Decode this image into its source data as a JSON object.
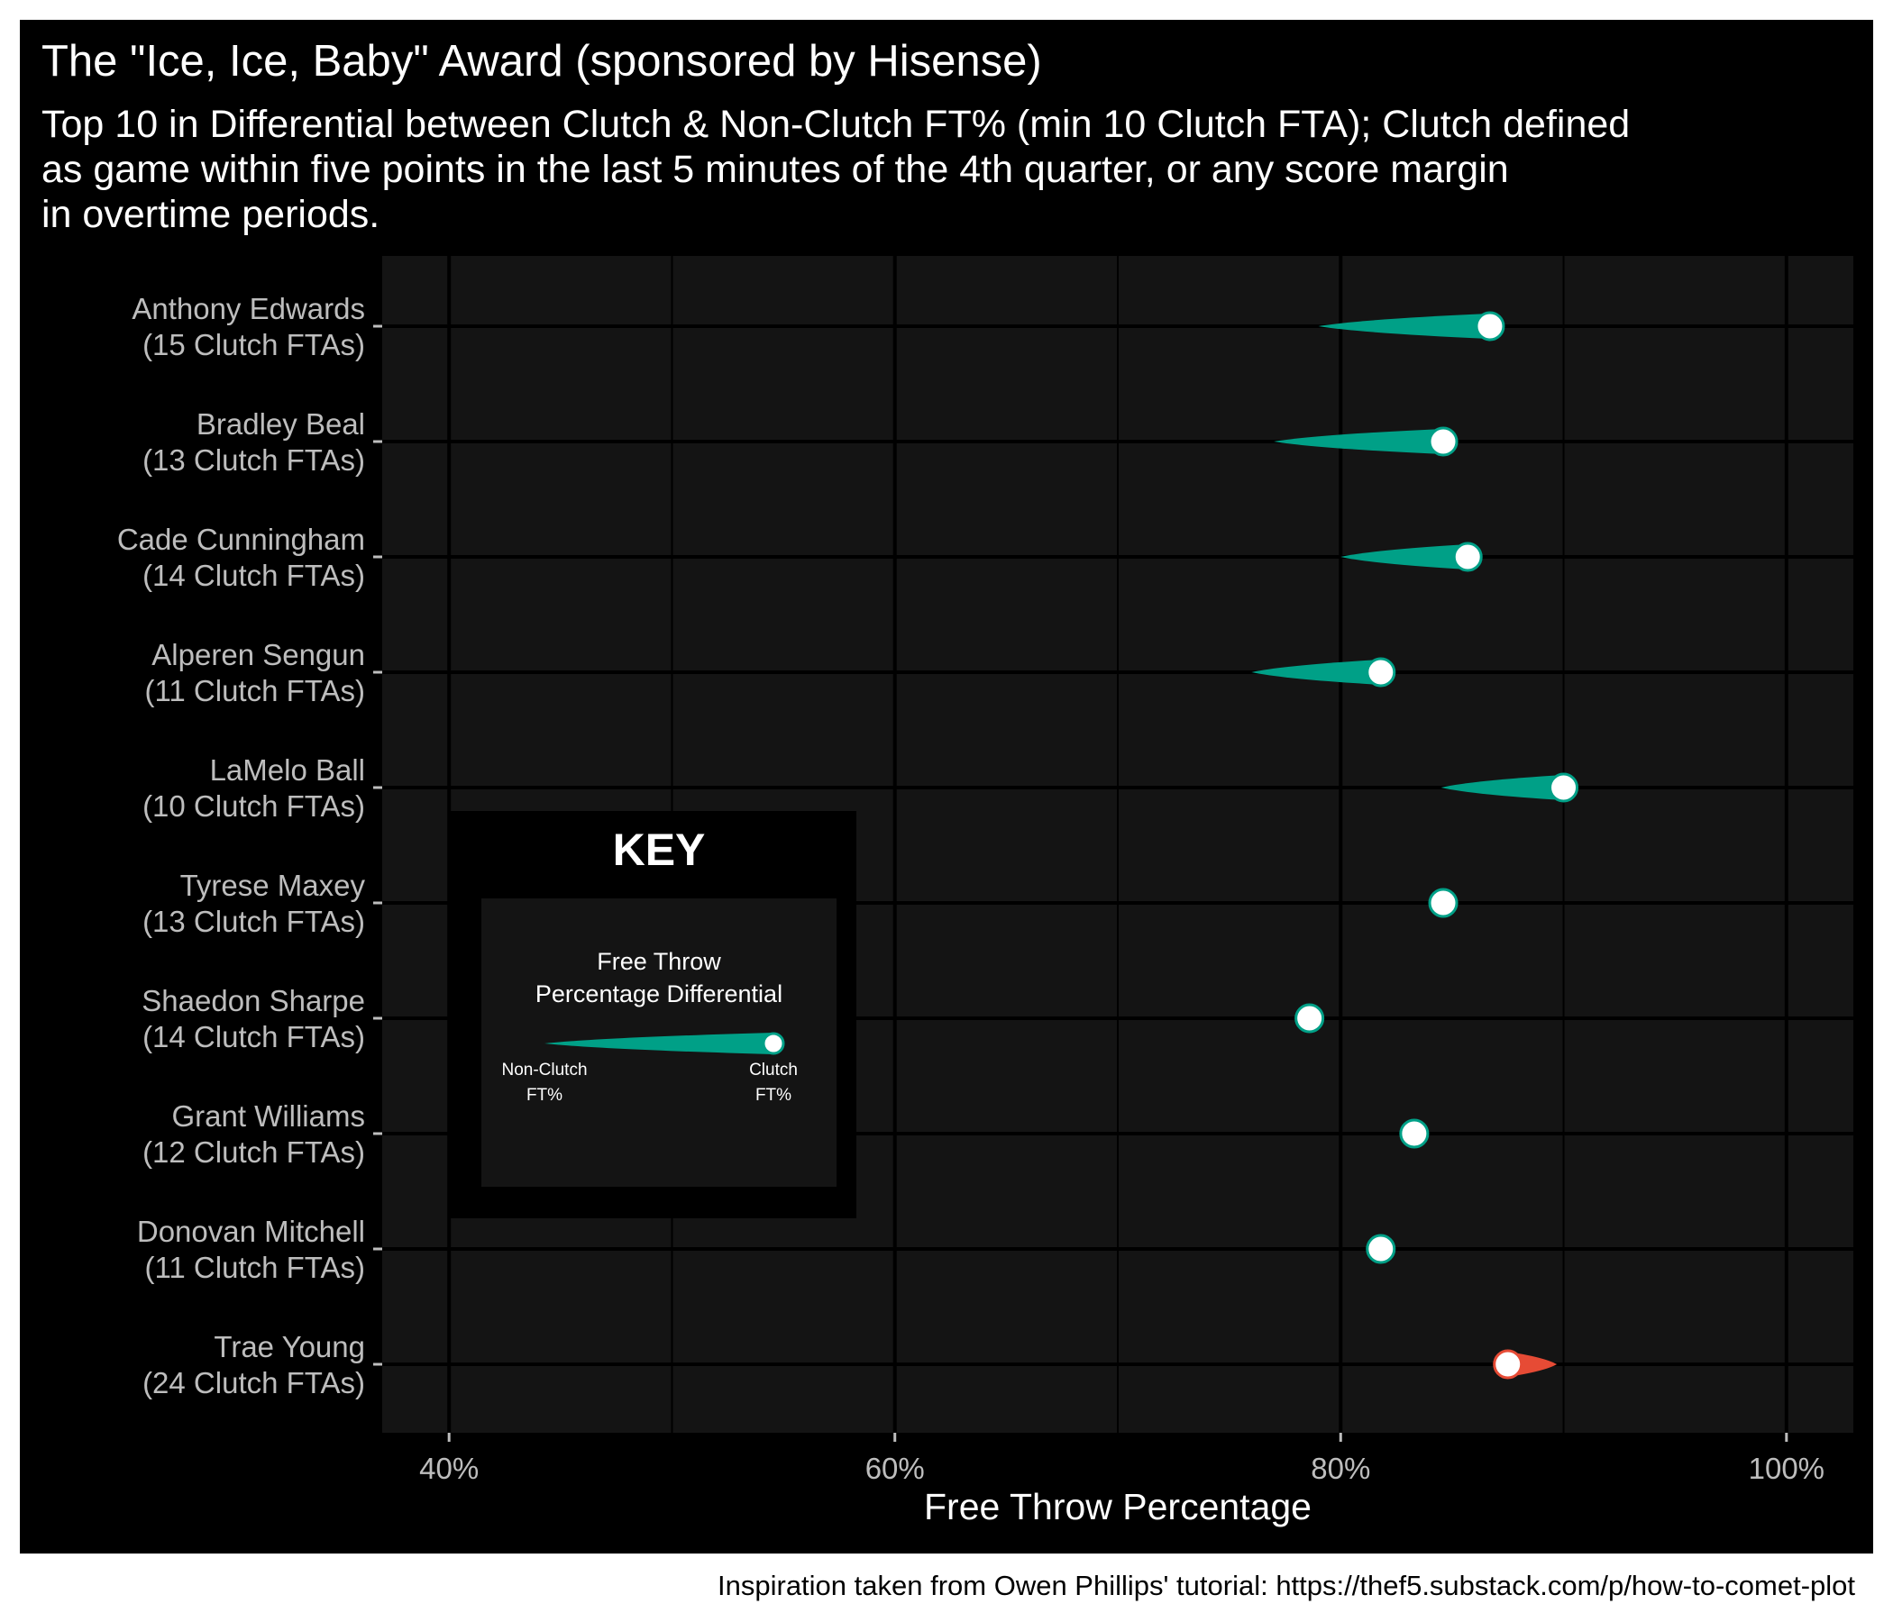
{
  "title": "The \"Ice, Ice, Baby\" Award (sponsored by Hisense)",
  "subtitle_lines": [
    "Top 10 in Differential between Clutch & Non-Clutch FT% (min 10 Clutch FTA); Clutch defined",
    "as game within five points in the last 5 minutes of the 4th quarter, or any score margin",
    "in overtime periods."
  ],
  "caption": "Inspiration taken from Owen Phillips' tutorial: https://thef5.substack.com/p/how-to-comet-plot",
  "colors": {
    "positive": "#00a087",
    "negative": "#e64b35",
    "panel": "#141414",
    "background": "#000000"
  },
  "key": {
    "title": "KEY",
    "legend_title_lines": [
      "Free Throw",
      "Percentage Differential"
    ],
    "left_label_lines": [
      "Non-Clutch",
      "FT%"
    ],
    "right_label_lines": [
      "Clutch",
      "FT%"
    ]
  },
  "chart_data": {
    "type": "comet",
    "xlabel": "Free Throw Percentage",
    "xlim": [
      0.37,
      1.03
    ],
    "x_ticks": [
      0.4,
      0.6,
      0.8,
      1.0
    ],
    "x_tick_labels": [
      "40%",
      "60%",
      "80%",
      "100%"
    ],
    "grid": true,
    "series": [
      {
        "player": "Anthony Edwards",
        "label_line2": "(15 Clutch FTAs)",
        "non_clutch_ft": 0.79,
        "clutch_ft": 0.867
      },
      {
        "player": "Bradley Beal",
        "label_line2": "(13 Clutch FTAs)",
        "non_clutch_ft": 0.77,
        "clutch_ft": 0.846
      },
      {
        "player": "Cade Cunningham",
        "label_line2": "(14 Clutch FTAs)",
        "non_clutch_ft": 0.8,
        "clutch_ft": 0.857
      },
      {
        "player": "Alperen Sengun",
        "label_line2": "(11 Clutch FTAs)",
        "non_clutch_ft": 0.76,
        "clutch_ft": 0.818
      },
      {
        "player": "LaMelo Ball",
        "label_line2": "(10 Clutch FTAs)",
        "non_clutch_ft": 0.845,
        "clutch_ft": 0.9
      },
      {
        "player": "Tyrese Maxey",
        "label_line2": "(13 Clutch FTAs)",
        "non_clutch_ft": 0.846,
        "clutch_ft": 0.846
      },
      {
        "player": "Shaedon Sharpe",
        "label_line2": "(14 Clutch FTAs)",
        "non_clutch_ft": 0.786,
        "clutch_ft": 0.786
      },
      {
        "player": "Grant Williams",
        "label_line2": "(12 Clutch FTAs)",
        "non_clutch_ft": 0.833,
        "clutch_ft": 0.833
      },
      {
        "player": "Donovan Mitchell",
        "label_line2": "(11 Clutch FTAs)",
        "non_clutch_ft": 0.818,
        "clutch_ft": 0.818
      },
      {
        "player": "Trae Young",
        "label_line2": "(24 Clutch FTAs)",
        "non_clutch_ft": 0.897,
        "clutch_ft": 0.875
      }
    ]
  }
}
